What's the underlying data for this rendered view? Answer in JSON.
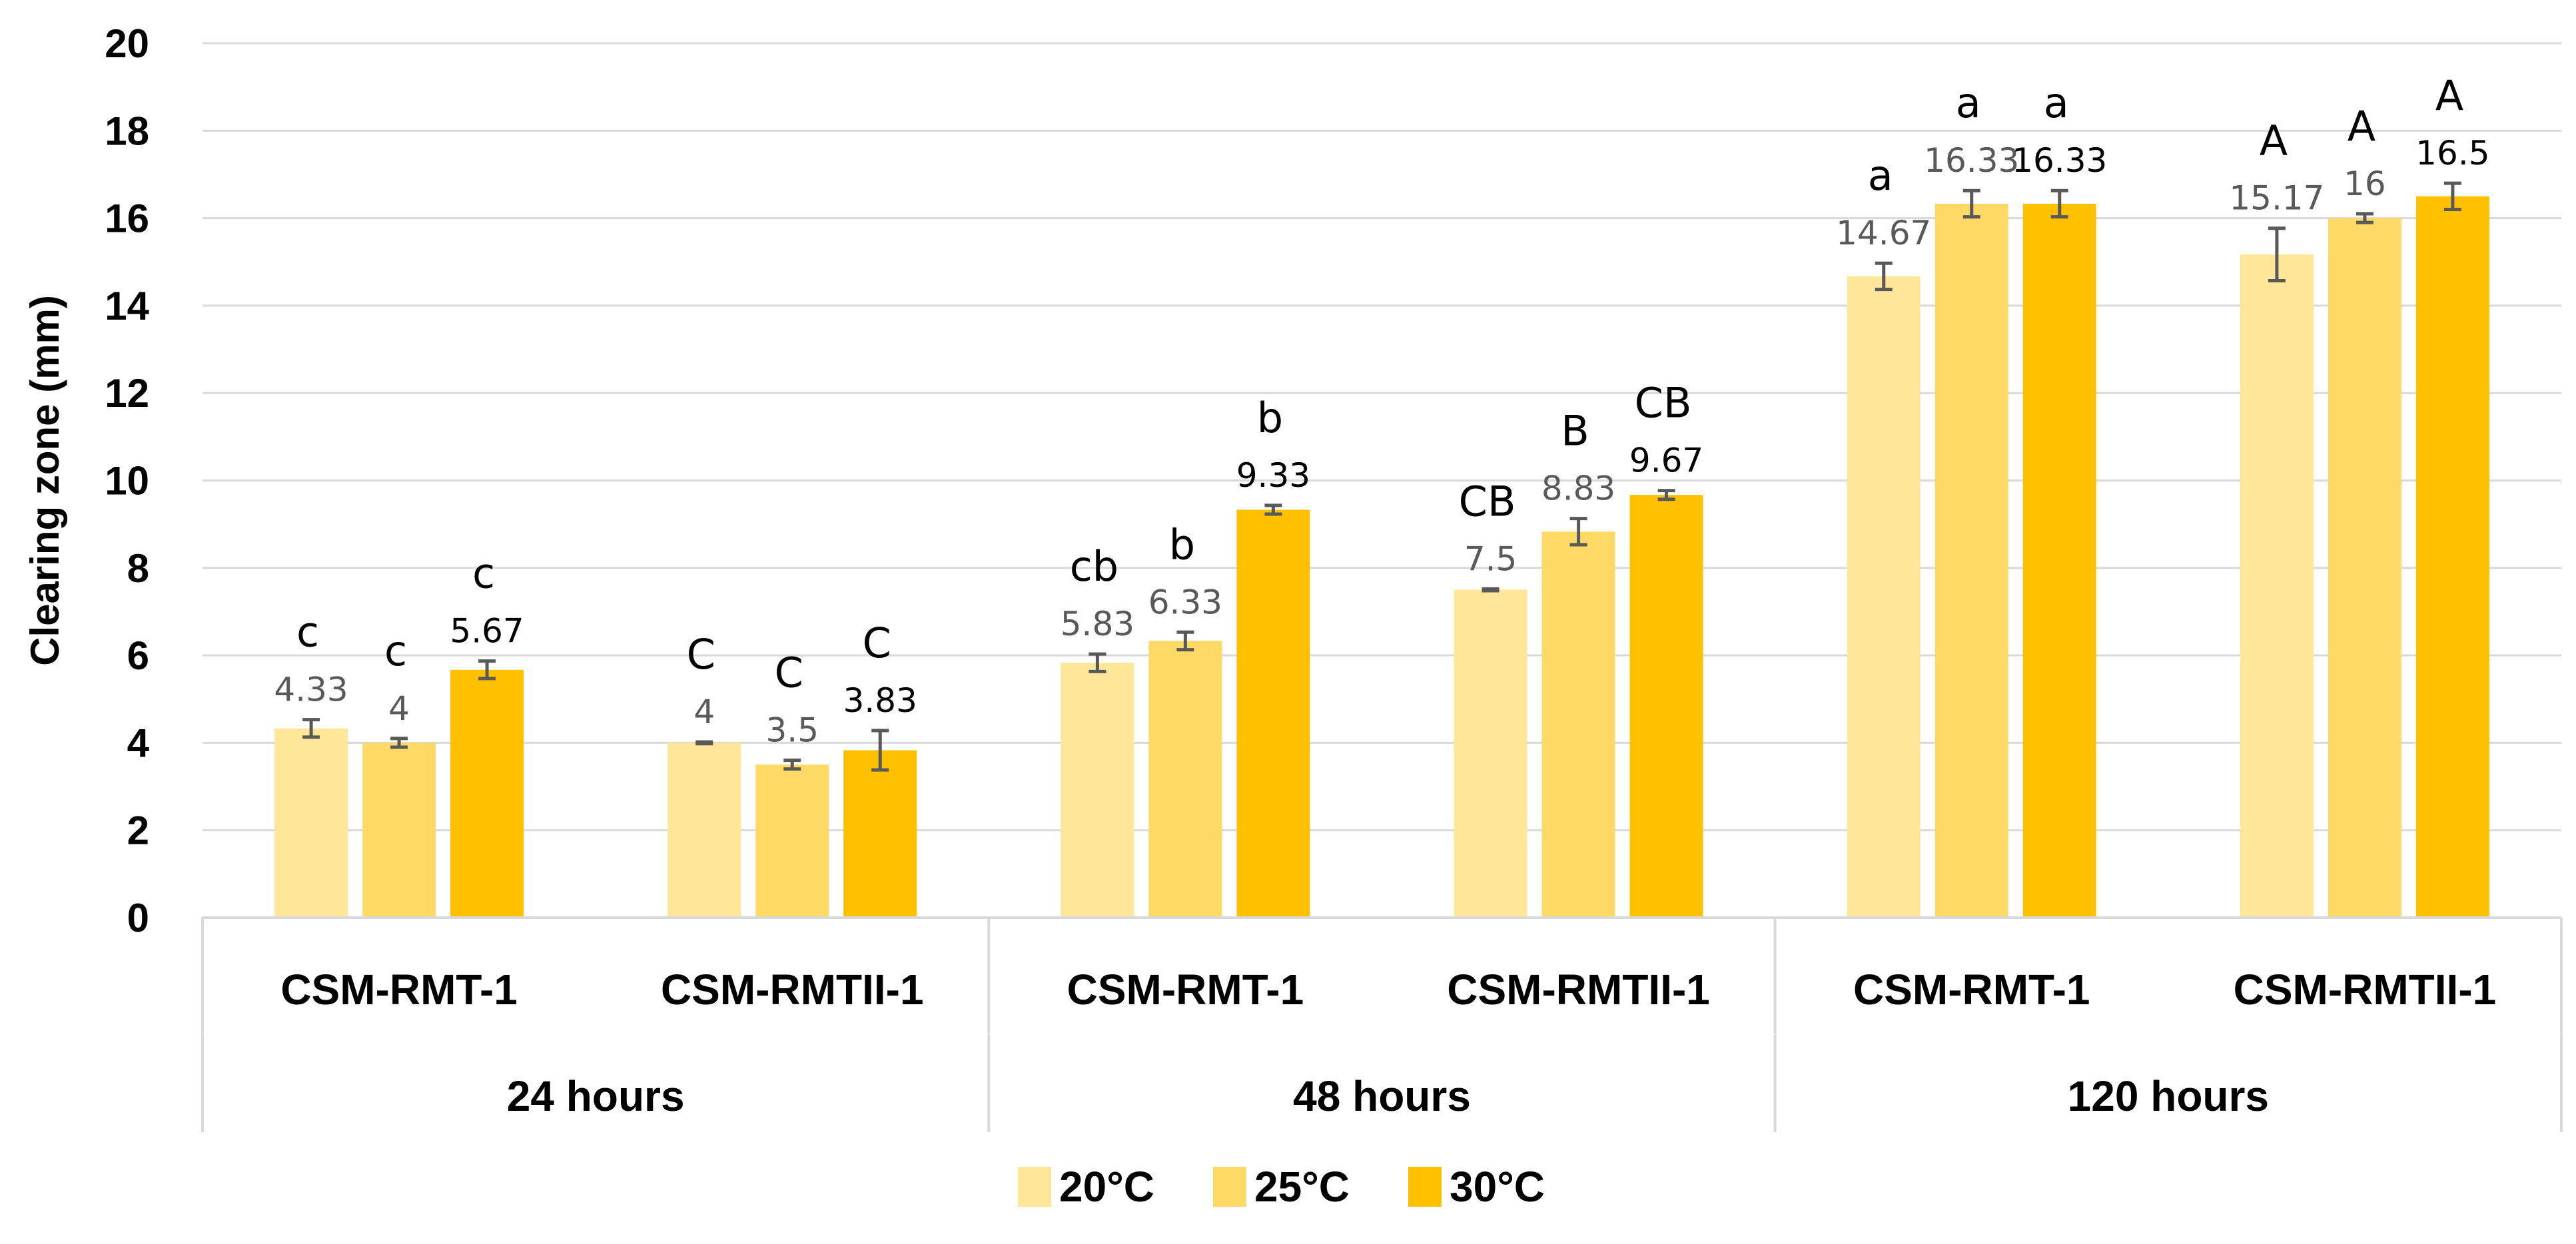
{
  "chart_data": {
    "type": "bar",
    "ylabel": "Clearing zone (mm)",
    "ylim": [
      0,
      20
    ],
    "yticks": [
      0,
      2,
      4,
      6,
      8,
      10,
      12,
      14,
      16,
      18,
      20
    ],
    "grid": true,
    "legend_position": "bottom",
    "groups": [
      "24 hours",
      "48 hours",
      "120 hours"
    ],
    "strains": [
      "CSM-RMT-1",
      "CSM-RMTII-1"
    ],
    "categories": [
      {
        "group": "24 hours",
        "strain": "CSM-RMT-1"
      },
      {
        "group": "24 hours",
        "strain": "CSM-RMTII-1"
      },
      {
        "group": "48 hours",
        "strain": "CSM-RMT-1"
      },
      {
        "group": "48 hours",
        "strain": "CSM-RMTII-1"
      },
      {
        "group": "120 hours",
        "strain": "CSM-RMT-1"
      },
      {
        "group": "120 hours",
        "strain": "CSM-RMTII-1"
      }
    ],
    "series": [
      {
        "name": "20°C",
        "color": "#FFE699",
        "values": [
          4.33,
          4,
          5.83,
          7.5,
          14.67,
          15.17
        ],
        "labels": [
          "4.33",
          "4",
          "5.83",
          "7.5",
          "14.67",
          "15.17"
        ],
        "errors": [
          0.2,
          0.02,
          0.2,
          0.02,
          0.3,
          0.6
        ],
        "letters": [
          "c",
          "C",
          "cb",
          "CB",
          "a",
          "A"
        ]
      },
      {
        "name": "25°C",
        "color": "#FFD966",
        "values": [
          4,
          3.5,
          6.33,
          8.83,
          16.33,
          16
        ],
        "labels": [
          "4",
          "3.5",
          "6.33",
          "8.83",
          "16.33",
          "16"
        ],
        "errors": [
          0.1,
          0.1,
          0.2,
          0.3,
          0.3,
          0.1
        ],
        "letters": [
          "c",
          "C",
          "b",
          "B",
          "a",
          "A"
        ]
      },
      {
        "name": "30°C",
        "color": "#FFC000",
        "values": [
          5.67,
          3.83,
          9.33,
          9.67,
          16.33,
          16.5
        ],
        "labels": [
          "5.67",
          "3.83",
          "9.33",
          "9.67",
          "16.33",
          "16.5"
        ],
        "errors": [
          0.2,
          0.45,
          0.1,
          0.1,
          0.3,
          0.3
        ],
        "letters": [
          "c",
          "C",
          "b",
          "CB",
          "a",
          "A"
        ]
      }
    ]
  }
}
